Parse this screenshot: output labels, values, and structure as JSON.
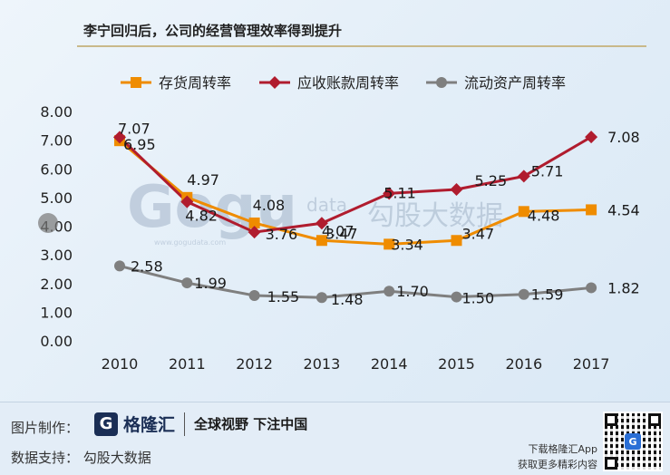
{
  "title": "李宁回归后，公司的经营管理效率得到提升",
  "watermark": {
    "brand": "Gogu",
    "sub": "data",
    "cn": "勾股大数据",
    "url": "www.gogudata.com"
  },
  "chart_data": {
    "type": "line",
    "categories": [
      "2010",
      "2011",
      "2012",
      "2013",
      "2014",
      "2015",
      "2016",
      "2017"
    ],
    "ylim": [
      0,
      8
    ],
    "yticks": [
      "0.00",
      "1.00",
      "2.00",
      "3.00",
      "4.00",
      "5.00",
      "6.00",
      "7.00",
      "8.00"
    ],
    "grid": false,
    "legend_position": "top",
    "series": [
      {
        "name": "存货周转率",
        "color": "#ef8c00",
        "marker": "square",
        "values": [
          6.95,
          4.97,
          4.08,
          3.47,
          3.34,
          3.47,
          4.48,
          4.54
        ],
        "labels": [
          "6.95",
          "4.97",
          "4.08",
          "3.47",
          "3.34",
          "3.47",
          "4.48",
          "4.54"
        ]
      },
      {
        "name": "应收账款周转率",
        "color": "#b01c2e",
        "marker": "diamond",
        "values": [
          7.07,
          4.82,
          3.76,
          4.07,
          5.11,
          5.25,
          5.71,
          7.08
        ],
        "labels": [
          "7.07",
          "4.82",
          "3.76",
          "4.07",
          "5.11",
          "5.25",
          "5.71",
          "7.08"
        ]
      },
      {
        "name": "流动资产周转率",
        "color": "#7f7f7f",
        "marker": "circle",
        "values": [
          2.58,
          1.99,
          1.55,
          1.48,
          1.7,
          1.5,
          1.59,
          1.82
        ],
        "labels": [
          "2.58",
          "1.99",
          "1.55",
          "1.48",
          "1.70",
          "1.50",
          "1.59",
          "1.82"
        ]
      }
    ]
  },
  "footer": {
    "credit_label": "图片制作：",
    "brand_logo": "G",
    "brand_name": "格隆汇",
    "slogan": "全球视野 下注中国",
    "support": "数据支持：  勾股大数据",
    "app_line1": "下载格隆汇App",
    "app_line2": "获取更多精彩内容"
  }
}
